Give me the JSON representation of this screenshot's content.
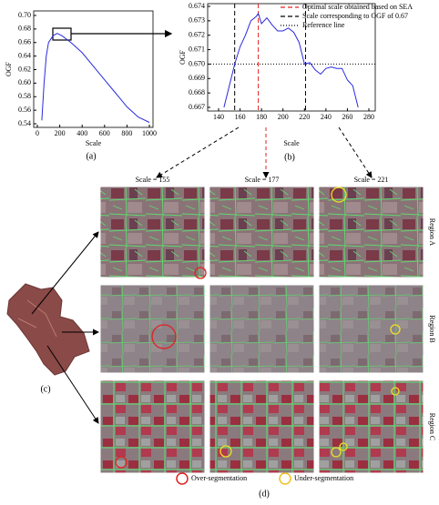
{
  "chart_data": [
    {
      "type": "line",
      "label": "(a)",
      "xlabel": "Scale",
      "ylabel": "OGF",
      "color": "#2a2ae0",
      "x": [
        40,
        60,
        80,
        100,
        140,
        177,
        220,
        300,
        400,
        500,
        600,
        700,
        800,
        900,
        1000
      ],
      "values": [
        0.545,
        0.6,
        0.64,
        0.66,
        0.67,
        0.6735,
        0.67,
        0.66,
        0.645,
        0.625,
        0.605,
        0.585,
        0.565,
        0.55,
        0.542
      ],
      "xlim": [
        0,
        1000
      ],
      "xticks": [
        0,
        200,
        400,
        600,
        800,
        1000
      ],
      "ylim": [
        0.54,
        0.7
      ],
      "yticks": [
        0.54,
        0.56,
        0.58,
        {
          "value": 0.6,
          "label": "0.60"
        },
        0.62,
        0.64,
        0.66,
        0.68,
        {
          "value": 0.7,
          "label": "0.70"
        }
      ]
    },
    {
      "type": "line",
      "label": "(b)",
      "xlabel": "Scale",
      "ylabel": "OGF",
      "color": "#2a2ae0",
      "x": [
        145,
        150,
        155,
        160,
        165,
        170,
        175,
        177,
        180,
        185,
        190,
        195,
        200,
        205,
        210,
        215,
        220,
        225,
        230,
        235,
        240,
        245,
        250,
        255,
        260,
        265,
        270
      ],
      "values": [
        0.667,
        0.6685,
        0.67,
        0.6712,
        0.672,
        0.673,
        0.6733,
        0.6735,
        0.6728,
        0.6732,
        0.6727,
        0.6723,
        0.6723,
        0.6725,
        0.6722,
        0.6715,
        0.67,
        0.6701,
        0.6696,
        0.6693,
        0.6697,
        0.6698,
        0.6697,
        0.6697,
        0.6689,
        0.6685,
        0.667
      ],
      "xlim": [
        140,
        280
      ],
      "xticks": [
        140,
        160,
        180,
        200,
        220,
        240,
        260,
        280
      ],
      "ylim": [
        0.667,
        0.674
      ],
      "yticks": [
        0.667,
        0.668,
        0.669,
        {
          "value": 0.67,
          "label": "0.670"
        },
        0.671,
        0.672,
        0.673,
        0.674
      ],
      "optimal_scale": 177,
      "ogf_scales": [
        155,
        221
      ],
      "reference": 0.67,
      "legend": [
        "Optimal scale obtained based on SEA",
        "Scale corresponding to OGF of 0.67",
        "Reference line"
      ]
    }
  ],
  "panels": {
    "columns": [
      "Scale = 155",
      "Scale = 177",
      "Scale = 221"
    ],
    "rows": [
      "Region A",
      "Region B",
      "Region C"
    ],
    "map_label": "(c)",
    "grid_label": "(d)",
    "legend": [
      "Over-segmentation",
      "Under-segmentation"
    ]
  }
}
